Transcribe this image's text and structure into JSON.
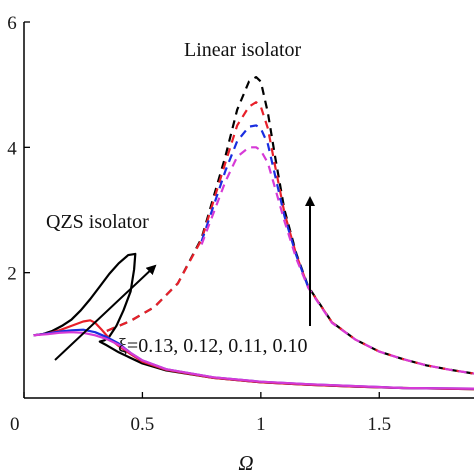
{
  "chart_data": {
    "type": "line",
    "title": "",
    "xlabel": "Ω",
    "ylabel": "",
    "xlim": [
      0,
      1.9
    ],
    "ylim": [
      0,
      6
    ],
    "x_ticks": [
      {
        "value": 0,
        "label": "0"
      },
      {
        "value": 0.5,
        "label": "0.5"
      },
      {
        "value": 1,
        "label": "1"
      },
      {
        "value": 1.5,
        "label": "1.5"
      }
    ],
    "y_ticks": [
      {
        "value": 2,
        "label": "2"
      },
      {
        "value": 4,
        "label": "4"
      },
      {
        "value": 6,
        "label": "6"
      }
    ],
    "grid": false,
    "colors": {
      "series1": "#000000",
      "series2": "#e8202a",
      "series3": "#1a2ee0",
      "series4": "#d63ad6"
    },
    "annotations": {
      "linear": "Linear isolator",
      "qzs": "QZS isolator",
      "damping": "ξ=0.13, 0.12, 0.11, 0.10"
    },
    "series": [
      {
        "damping": 0.13,
        "color": "#000000",
        "style": "dashed",
        "x": [
          0.35,
          0.45,
          0.55,
          0.65,
          0.75,
          0.85,
          0.9,
          0.95,
          0.98,
          1.0,
          1.03,
          1.06,
          1.1,
          1.15,
          1.2,
          1.3,
          1.4,
          1.5,
          1.6,
          1.7,
          1.8,
          1.9
        ],
        "y": [
          1.07,
          1.23,
          1.45,
          1.83,
          2.55,
          3.85,
          4.6,
          5.05,
          5.12,
          5.05,
          4.55,
          3.85,
          3.0,
          2.3,
          1.78,
          1.21,
          0.93,
          0.74,
          0.62,
          0.52,
          0.45,
          0.39
        ]
      },
      {
        "damping": 0.12,
        "color": "#e8202a",
        "style": "dashed",
        "x": [
          0.35,
          0.45,
          0.55,
          0.65,
          0.75,
          0.85,
          0.9,
          0.95,
          0.98,
          1.0,
          1.03,
          1.06,
          1.1,
          1.15,
          1.2,
          1.3,
          1.4,
          1.5,
          1.6,
          1.7,
          1.8,
          1.9
        ],
        "y": [
          1.07,
          1.23,
          1.45,
          1.83,
          2.53,
          3.75,
          4.35,
          4.65,
          4.72,
          4.65,
          4.3,
          3.7,
          2.95,
          2.28,
          1.77,
          1.21,
          0.93,
          0.74,
          0.62,
          0.52,
          0.45,
          0.39
        ]
      },
      {
        "damping": 0.11,
        "color": "#1a2ee0",
        "style": "dashed",
        "x": [
          0.75,
          0.85,
          0.9,
          0.95,
          0.98,
          1.0,
          1.03,
          1.06,
          1.1,
          1.15,
          1.2
        ],
        "y": [
          2.5,
          3.62,
          4.1,
          4.33,
          4.35,
          4.3,
          4.05,
          3.55,
          2.9,
          2.27,
          1.77
        ]
      },
      {
        "damping": 0.1,
        "color": "#d63ad6",
        "style": "dashed",
        "x": [
          0.75,
          0.85,
          0.9,
          0.95,
          0.98,
          1.0,
          1.03,
          1.06,
          1.1,
          1.15,
          1.2,
          1.3,
          1.4,
          1.5,
          1.6,
          1.7,
          1.8,
          1.9
        ],
        "y": [
          2.45,
          3.45,
          3.85,
          4.0,
          4.0,
          3.95,
          3.75,
          3.35,
          2.82,
          2.22,
          1.76,
          1.2,
          0.93,
          0.74,
          0.62,
          0.52,
          0.45,
          0.39
        ]
      },
      {
        "damping": 0.13,
        "color": "#000000",
        "style": "solid",
        "x": [
          0.04,
          0.08,
          0.12,
          0.16,
          0.2,
          0.24,
          0.28,
          0.32,
          0.36,
          0.4,
          0.44,
          0.47,
          0.465,
          0.45,
          0.42,
          0.39,
          0.36,
          0.34,
          0.32,
          0.35,
          0.4,
          0.5,
          0.6,
          0.8,
          1.0,
          1.2,
          1.4,
          1.6,
          1.9
        ],
        "y": [
          1.0,
          1.02,
          1.07,
          1.15,
          1.25,
          1.4,
          1.58,
          1.78,
          1.98,
          2.15,
          2.28,
          2.3,
          2.05,
          1.7,
          1.4,
          1.15,
          0.98,
          0.92,
          0.9,
          0.84,
          0.73,
          0.55,
          0.44,
          0.32,
          0.25,
          0.21,
          0.18,
          0.16,
          0.14
        ]
      },
      {
        "damping": 0.12,
        "color": "#e8202a",
        "style": "solid",
        "x": [
          0.04,
          0.1,
          0.15,
          0.2,
          0.25,
          0.28,
          0.3,
          0.33,
          0.36,
          0.4,
          0.45,
          0.5,
          0.6,
          0.8,
          1.0,
          1.2,
          1.4,
          1.6,
          1.9
        ],
        "y": [
          1.0,
          1.03,
          1.08,
          1.15,
          1.22,
          1.24,
          1.2,
          1.08,
          0.95,
          0.83,
          0.7,
          0.58,
          0.45,
          0.32,
          0.25,
          0.21,
          0.18,
          0.16,
          0.14
        ]
      },
      {
        "damping": 0.11,
        "color": "#1a2ee0",
        "style": "solid",
        "x": [
          0.04,
          0.1,
          0.15,
          0.2,
          0.25,
          0.3,
          0.35,
          0.4,
          0.45,
          0.5,
          0.6,
          0.8,
          1.0,
          1.2,
          1.4,
          1.6,
          1.9
        ],
        "y": [
          1.0,
          1.03,
          1.06,
          1.08,
          1.09,
          1.05,
          0.97,
          0.87,
          0.72,
          0.6,
          0.46,
          0.33,
          0.26,
          0.22,
          0.19,
          0.16,
          0.15
        ]
      },
      {
        "damping": 0.1,
        "color": "#d63ad6",
        "style": "solid",
        "x": [
          0.04,
          0.1,
          0.15,
          0.2,
          0.25,
          0.3,
          0.35,
          0.4,
          0.45,
          0.5,
          0.6,
          0.8,
          1.0,
          1.2,
          1.4,
          1.6,
          1.9
        ],
        "y": [
          1.0,
          1.02,
          1.04,
          1.05,
          1.04,
          1.0,
          0.94,
          0.85,
          0.72,
          0.6,
          0.46,
          0.33,
          0.26,
          0.22,
          0.19,
          0.16,
          0.15
        ]
      }
    ]
  }
}
